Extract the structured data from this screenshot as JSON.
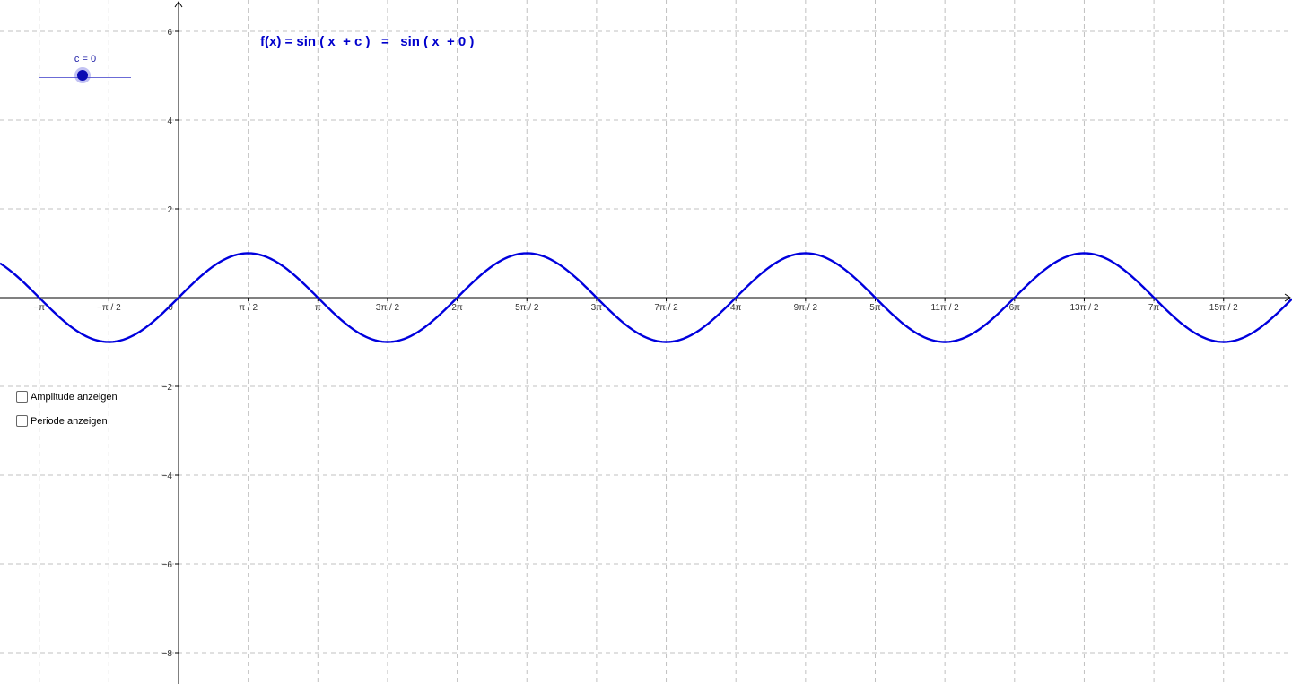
{
  "formula": {
    "text": "f(x) = sin ( x  + c )   =   sin ( x  + 0 )"
  },
  "slider": {
    "label": "c = 0",
    "value": 0
  },
  "checkboxes": [
    {
      "label": "Amplitude anzeigen",
      "checked": false
    },
    {
      "label": "Periode anzeigen",
      "checked": false
    }
  ],
  "axes": {
    "x_tick_labels": [
      "−π",
      "−π / 2",
      "0",
      "π / 2",
      "π",
      "3π / 2",
      "2π",
      "5π / 2",
      "3π",
      "7π / 2",
      "4π",
      "9π / 2",
      "5π",
      "11π / 2",
      "6π",
      "13π / 2",
      "7π",
      "15π / 2"
    ],
    "y_tick_labels": [
      "6",
      "4",
      "2",
      "−2",
      "−4",
      "−6",
      "−8"
    ]
  },
  "colors": {
    "curve": "#0000dd",
    "grid": "#c0c0c0",
    "axis": "#000000",
    "formula": "#0000cc"
  },
  "chart_data": {
    "type": "line",
    "function": "sin(x + c)",
    "c": 0,
    "xlim": [
      -6.28,
      28.9
    ],
    "ylim": [
      -8.6,
      6.7
    ],
    "grid": true
  }
}
